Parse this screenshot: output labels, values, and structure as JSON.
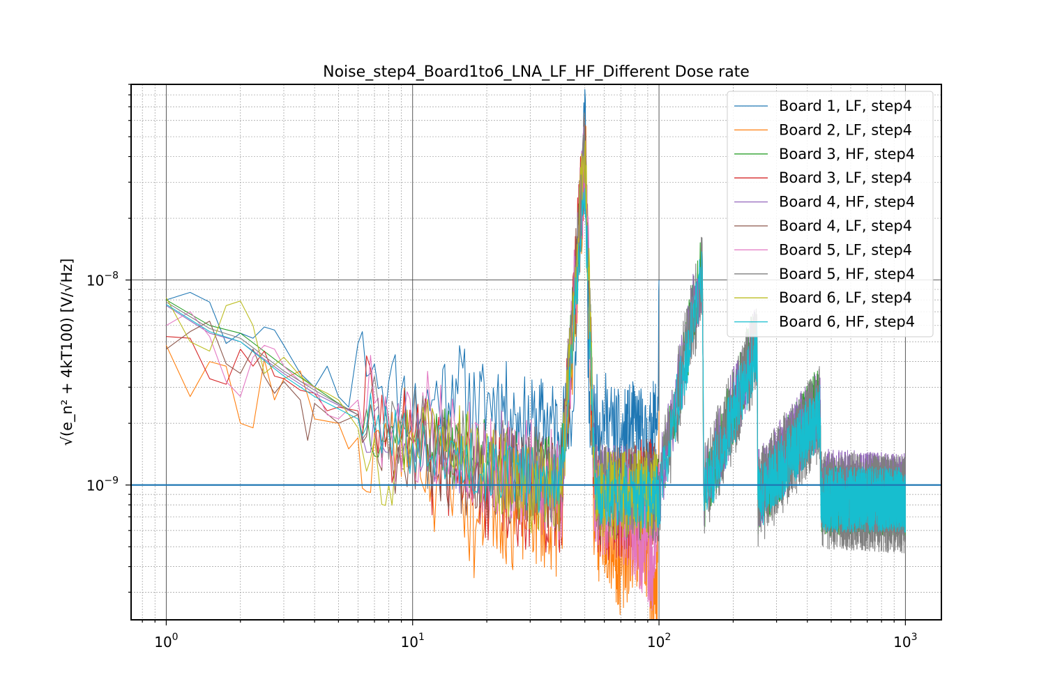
{
  "chart_data": {
    "type": "line",
    "title": "Noise_step4_Board1to6_LNA_LF_HF_Different Dose rate",
    "xlabel": "",
    "ylabel": "√(e_n² + 4kT100) [V/√Hz]",
    "x_scale": "log",
    "y_scale": "log",
    "xlim": [
      0.72,
      1400
    ],
    "ylim": [
      2.2e-10,
      9e-08
    ],
    "grid": "major and minor",
    "legend_position": "top-right",
    "x_ticks": [
      {
        "value": 1,
        "base": "10",
        "exp": "0"
      },
      {
        "value": 10,
        "base": "10",
        "exp": "1"
      },
      {
        "value": 100,
        "base": "10",
        "exp": "2"
      },
      {
        "value": 1000,
        "base": "10",
        "exp": "3"
      }
    ],
    "y_ticks": [
      {
        "value": 1e-09,
        "base": "10",
        "exp": "−9"
      },
      {
        "value": 1e-08,
        "base": "10",
        "exp": "−8"
      }
    ],
    "reference_line": {
      "y": 1e-09,
      "color": "#1f77b4"
    },
    "series": [
      {
        "name": "Board 1, LF, step4",
        "color": "#1f77b4",
        "points": [
          [
            1,
            8e-09
          ],
          [
            1.25,
            8.7e-09
          ],
          [
            1.5,
            7.8e-09
          ],
          [
            1.75,
            4.9e-09
          ],
          [
            2,
            5.5e-09
          ],
          [
            2.25,
            5.2e-09
          ],
          [
            2.5,
            5.9e-09
          ],
          [
            2.75,
            5.7e-09
          ],
          [
            3,
            4.8e-09
          ],
          [
            3.5,
            3.5e-09
          ],
          [
            4,
            3e-09
          ],
          [
            4.5,
            3.8e-09
          ],
          [
            5,
            2.7e-09
          ],
          [
            5.5,
            2.4e-09
          ],
          [
            6,
            4.9e-09
          ],
          [
            6.25,
            5.6e-09
          ],
          [
            6.75,
            3.5e-09
          ],
          [
            7,
            3.9e-09
          ],
          [
            8,
            3.2e-09
          ],
          [
            9,
            2.9e-09
          ],
          [
            10,
            2.3e-09
          ],
          [
            12,
            2.6e-09
          ],
          [
            15,
            3.3e-09
          ],
          [
            18,
            2.4e-09
          ],
          [
            22,
            2.7e-09
          ],
          [
            26,
            2.2e-09
          ],
          [
            30,
            2e-09
          ],
          [
            35,
            2.1e-09
          ],
          [
            40,
            1.9e-09
          ],
          [
            45,
            2.3e-09
          ],
          [
            50,
            8.5e-08
          ],
          [
            52,
            2e-09
          ],
          [
            60,
            2.2e-09
          ],
          [
            70,
            1.7e-09
          ],
          [
            80,
            2e-09
          ],
          [
            90,
            1.6e-09
          ],
          [
            99,
            2.3e-09
          ],
          [
            100,
            1e-08
          ]
        ],
        "seed": 11,
        "jitter": 0.22,
        "end": 100
      },
      {
        "name": "Board 2, LF, step4",
        "color": "#ff7f0e",
        "points": [
          [
            1,
            4.8e-09
          ],
          [
            1.25,
            2.7e-09
          ],
          [
            1.5,
            4e-09
          ],
          [
            1.75,
            3.8e-09
          ],
          [
            2,
            2e-09
          ],
          [
            2.25,
            1.9e-09
          ],
          [
            2.5,
            4.1e-09
          ],
          [
            2.75,
            2.6e-09
          ],
          [
            3,
            3.3e-09
          ],
          [
            3.5,
            3.6e-09
          ],
          [
            4,
            2.1e-09
          ],
          [
            5,
            2e-09
          ],
          [
            5.5,
            1.5e-09
          ],
          [
            6,
            1.7e-09
          ],
          [
            6.75,
            9.2e-10
          ],
          [
            7,
            1.8e-09
          ],
          [
            8,
            1.4e-09
          ],
          [
            10,
            1.9e-09
          ],
          [
            12,
            1.1e-09
          ],
          [
            15,
            1.3e-09
          ],
          [
            18,
            6e-10
          ],
          [
            20,
            1e-09
          ],
          [
            25,
            7.5e-10
          ],
          [
            30,
            8e-10
          ],
          [
            40,
            7e-10
          ],
          [
            50,
            4.5e-08
          ],
          [
            55,
            5.5e-10
          ],
          [
            60,
            7e-10
          ],
          [
            70,
            4.5e-10
          ],
          [
            80,
            6.5e-10
          ],
          [
            90,
            5e-10
          ],
          [
            98,
            3e-10
          ],
          [
            100,
            2.3e-09
          ]
        ],
        "seed": 23,
        "jitter": 0.3,
        "end": 100
      },
      {
        "name": "Board 3, HF, step4",
        "color": "#2ca02c",
        "points": [
          [
            1,
            8e-09
          ],
          [
            1.5,
            6e-09
          ],
          [
            2,
            5.5e-09
          ],
          [
            3,
            3.8e-09
          ],
          [
            4,
            3e-09
          ],
          [
            5,
            2.5e-09
          ],
          [
            6,
            2.2e-09
          ],
          [
            8,
            1.9e-09
          ],
          [
            10,
            1.7e-09
          ],
          [
            20,
            1.4e-09
          ],
          [
            40,
            1.1e-09
          ],
          [
            50,
            4.3e-08
          ],
          [
            55,
            1e-09
          ],
          [
            100,
            9e-10
          ],
          [
            150,
            1.2e-08
          ],
          [
            152,
            9e-10
          ],
          [
            250,
            5.3e-09
          ],
          [
            252,
            8.5e-10
          ],
          [
            450,
            2.6e-09
          ],
          [
            455,
            8.5e-10
          ],
          [
            1000,
            8.5e-10
          ]
        ],
        "seed": 37,
        "jitter": 0.18,
        "end": 1000
      },
      {
        "name": "Board 3, LF, step4",
        "color": "#d62728",
        "points": [
          [
            1,
            5.3e-09
          ],
          [
            1.25,
            5.2e-09
          ],
          [
            1.5,
            3.3e-09
          ],
          [
            1.75,
            3.1e-09
          ],
          [
            2,
            4.6e-09
          ],
          [
            2.25,
            3.8e-09
          ],
          [
            2.5,
            4.5e-09
          ],
          [
            2.75,
            3.4e-09
          ],
          [
            3,
            3.3e-09
          ],
          [
            3.5,
            2.9e-09
          ],
          [
            4,
            2.8e-09
          ],
          [
            4.5,
            2.3e-09
          ],
          [
            5,
            2.4e-09
          ],
          [
            6,
            2.3e-09
          ],
          [
            7,
            2.2e-09
          ],
          [
            8,
            2e-09
          ],
          [
            9,
            1.7e-09
          ],
          [
            10,
            1.5e-09
          ],
          [
            15,
            1.2e-09
          ],
          [
            20,
            1e-09
          ],
          [
            30,
            9e-10
          ],
          [
            40,
            8.5e-10
          ],
          [
            50,
            4.4e-08
          ],
          [
            55,
            8e-10
          ],
          [
            70,
            7.5e-10
          ],
          [
            100,
            1e-09
          ]
        ],
        "seed": 41,
        "jitter": 0.28,
        "end": 100
      },
      {
        "name": "Board 4, HF, step4",
        "color": "#9467bd",
        "points": [
          [
            1,
            7.5e-09
          ],
          [
            1.5,
            5.5e-09
          ],
          [
            2,
            5e-09
          ],
          [
            3,
            3.5e-09
          ],
          [
            4,
            2.8e-09
          ],
          [
            6,
            2.2e-09
          ],
          [
            10,
            1.7e-09
          ],
          [
            20,
            1.3e-09
          ],
          [
            40,
            1.05e-09
          ],
          [
            50,
            4.3e-08
          ],
          [
            55,
            1e-09
          ],
          [
            100,
            9.5e-10
          ],
          [
            150,
            1.15e-08
          ],
          [
            152,
            9.5e-10
          ],
          [
            250,
            5e-09
          ],
          [
            252,
            9.5e-10
          ],
          [
            450,
            2.4e-09
          ],
          [
            455,
            9.5e-10
          ],
          [
            1000,
            9e-10
          ]
        ],
        "seed": 53,
        "jitter": 0.2,
        "end": 1000
      },
      {
        "name": "Board 4, LF, step4",
        "color": "#8c564b",
        "points": [
          [
            1,
            4.6e-09
          ],
          [
            1.25,
            5.6e-09
          ],
          [
            1.5,
            6.3e-09
          ],
          [
            1.75,
            3.9e-09
          ],
          [
            2,
            3.5e-09
          ],
          [
            2.25,
            4.6e-09
          ],
          [
            2.5,
            3.4e-09
          ],
          [
            2.75,
            2.8e-09
          ],
          [
            3,
            3.2e-09
          ],
          [
            3.5,
            2.6e-09
          ],
          [
            3.75,
            1.65e-09
          ],
          [
            4,
            2.5e-09
          ],
          [
            5,
            2e-09
          ],
          [
            6,
            2.2e-09
          ],
          [
            7,
            1.9e-09
          ],
          [
            8,
            2.1e-09
          ],
          [
            9,
            1.2e-09
          ],
          [
            10,
            1.6e-09
          ],
          [
            15,
            1.3e-09
          ],
          [
            20,
            1.2e-09
          ],
          [
            30,
            1e-09
          ],
          [
            40,
            9.5e-10
          ],
          [
            50,
            4.2e-08
          ],
          [
            55,
            9e-10
          ],
          [
            70,
            8.5e-10
          ],
          [
            100,
            1e-09
          ]
        ],
        "seed": 67,
        "jitter": 0.25,
        "end": 100
      },
      {
        "name": "Board 5, LF, step4",
        "color": "#e377c2",
        "points": [
          [
            1,
            6e-09
          ],
          [
            1.25,
            7e-09
          ],
          [
            1.5,
            5.3e-09
          ],
          [
            1.75,
            3.2e-09
          ],
          [
            2,
            2.7e-09
          ],
          [
            2.25,
            4.2e-09
          ],
          [
            2.5,
            4.8e-09
          ],
          [
            2.75,
            4.6e-09
          ],
          [
            3,
            3.8e-09
          ],
          [
            3.5,
            3.2e-09
          ],
          [
            4,
            3e-09
          ],
          [
            4.5,
            2.2e-09
          ],
          [
            5,
            2.1e-09
          ],
          [
            6,
            2.6e-09
          ],
          [
            7,
            2.5e-09
          ],
          [
            8,
            2e-09
          ],
          [
            10,
            1.8e-09
          ],
          [
            12,
            2e-09
          ],
          [
            15,
            1.5e-09
          ],
          [
            20,
            1.3e-09
          ],
          [
            30,
            1.1e-09
          ],
          [
            40,
            9.5e-10
          ],
          [
            50,
            4.2e-08
          ],
          [
            55,
            9e-10
          ],
          [
            70,
            8e-10
          ],
          [
            95,
            4.5e-10
          ],
          [
            100,
            1e-09
          ]
        ],
        "seed": 79,
        "jitter": 0.28,
        "end": 100
      },
      {
        "name": "Board 5, HF, step4",
        "color": "#7f7f7f",
        "points": [
          [
            1,
            7.8e-09
          ],
          [
            1.5,
            5.8e-09
          ],
          [
            2,
            5.2e-09
          ],
          [
            3,
            3.6e-09
          ],
          [
            4,
            2.9e-09
          ],
          [
            6,
            2.2e-09
          ],
          [
            10,
            1.7e-09
          ],
          [
            20,
            1.3e-09
          ],
          [
            40,
            1.05e-09
          ],
          [
            50,
            4.2e-08
          ],
          [
            55,
            1e-09
          ],
          [
            100,
            9e-10
          ],
          [
            150,
            1.1e-08
          ],
          [
            152,
            9e-10
          ],
          [
            250,
            4.8e-09
          ],
          [
            252,
            8.5e-10
          ],
          [
            450,
            2.3e-09
          ],
          [
            455,
            8.5e-10
          ],
          [
            1000,
            8e-10
          ]
        ],
        "seed": 89,
        "jitter": 0.24,
        "end": 1000
      },
      {
        "name": "Board 6, LF, step4",
        "color": "#bcbd22",
        "points": [
          [
            1,
            8.2e-09
          ],
          [
            1.25,
            5e-09
          ],
          [
            1.5,
            4.5e-09
          ],
          [
            1.75,
            7.5e-09
          ],
          [
            2,
            7.9e-09
          ],
          [
            2.25,
            6e-09
          ],
          [
            2.5,
            3.5e-09
          ],
          [
            3,
            4.2e-09
          ],
          [
            3.5,
            3.4e-09
          ],
          [
            4,
            3e-09
          ],
          [
            4.5,
            2.8e-09
          ],
          [
            5,
            2.6e-09
          ],
          [
            6,
            1.9e-09
          ],
          [
            7,
            1.7e-09
          ],
          [
            8,
            1e-09
          ],
          [
            9,
            1.6e-09
          ],
          [
            10,
            1.8e-09
          ],
          [
            14,
            2.2e-09
          ],
          [
            18,
            1.3e-09
          ],
          [
            25,
            1.1e-09
          ],
          [
            30,
            9.5e-10
          ],
          [
            40,
            9e-10
          ],
          [
            50,
            4.4e-08
          ],
          [
            55,
            8.5e-10
          ],
          [
            70,
            9e-10
          ],
          [
            100,
            9e-10
          ]
        ],
        "seed": 97,
        "jitter": 0.22,
        "end": 100
      },
      {
        "name": "Board 6, HF, step4",
        "color": "#17becf",
        "points": [
          [
            1,
            7.6e-09
          ],
          [
            1.5,
            5.6e-09
          ],
          [
            2,
            5e-09
          ],
          [
            3,
            3.4e-09
          ],
          [
            4,
            2.7e-09
          ],
          [
            6,
            2.1e-09
          ],
          [
            8,
            1.8e-09
          ],
          [
            10,
            1.6e-09
          ],
          [
            15,
            1.4e-09
          ],
          [
            20,
            1.2e-09
          ],
          [
            40,
            1e-09
          ],
          [
            50,
            2.8e-08
          ],
          [
            55,
            9e-10
          ],
          [
            100,
            8.8e-10
          ],
          [
            150,
            1.05e-08
          ],
          [
            152,
            8.8e-10
          ],
          [
            250,
            4.5e-09
          ],
          [
            252,
            8.5e-10
          ],
          [
            450,
            2.2e-09
          ],
          [
            455,
            8.5e-10
          ],
          [
            1000,
            8.5e-10
          ]
        ],
        "seed": 101,
        "jitter": 0.16,
        "end": 1000
      }
    ]
  }
}
